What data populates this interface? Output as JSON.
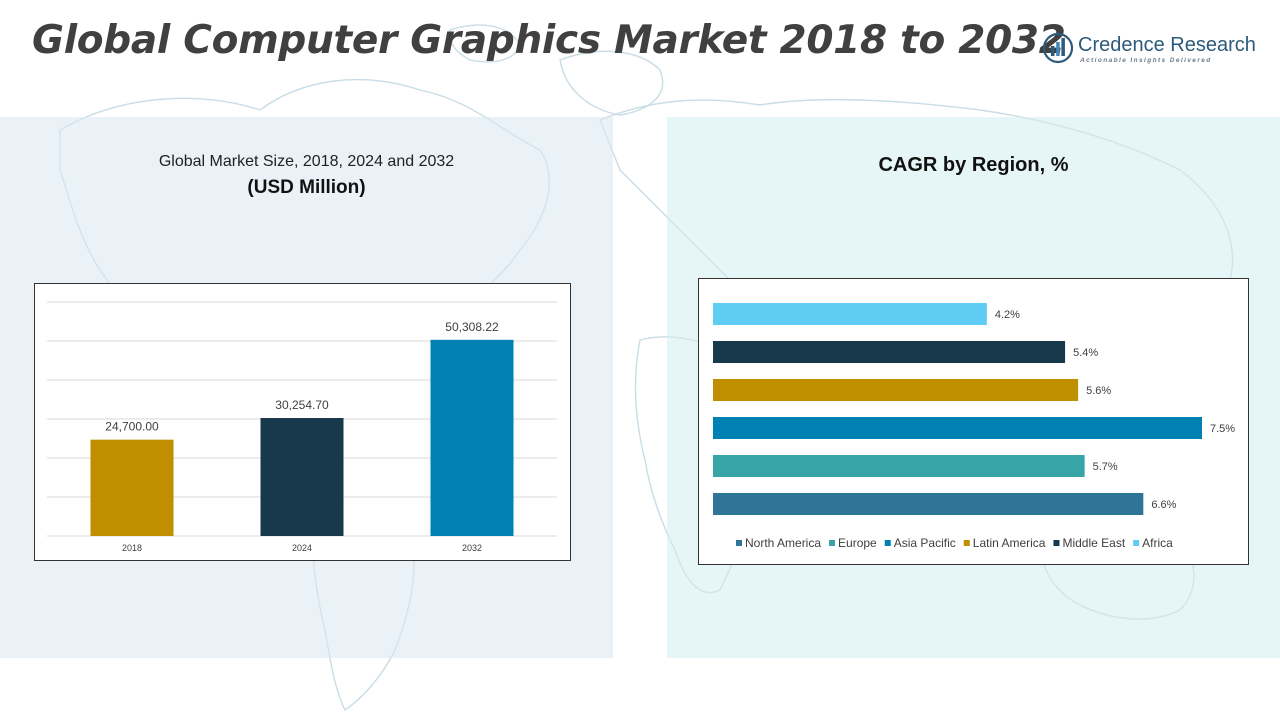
{
  "header": {
    "title": "Global Computer Graphics Market 2018 to 2032"
  },
  "logo": {
    "icon": "credence-logo-icon",
    "name": "Credence Research",
    "tagline": "Actionable Insights Delivered"
  },
  "left_panel": {
    "subtitle_line1": "Global Market Size, 2018, 2024 and 2032",
    "subtitle_line2": "(USD Million)"
  },
  "right_panel": {
    "subtitle": "CAGR by Region, %"
  },
  "colors": {
    "gold": "#BF8F00",
    "navy": "#17394B",
    "blue": "#0081B4",
    "teal": "#37A5A8",
    "steel": "#2F7597",
    "sky": "#5ECCF3"
  },
  "chart_data": [
    {
      "type": "bar",
      "categories": [
        "2018",
        "2024",
        "2032"
      ],
      "values": [
        24700.0,
        30254.7,
        50308.22
      ],
      "value_labels": [
        "24,700.00",
        "30,254.70",
        "50,308.22"
      ],
      "colors": [
        "#BF8F00",
        "#17394B",
        "#0081B4"
      ],
      "ylim": [
        0,
        60000
      ],
      "grid": true
    },
    {
      "type": "bar",
      "orientation": "horizontal",
      "categories": [
        "North America",
        "Europe",
        "Asia Pacific",
        "Latin America",
        "Middle East",
        "Africa"
      ],
      "values": [
        6.6,
        5.7,
        7.5,
        5.6,
        5.4,
        4.2
      ],
      "value_labels": [
        "6.6%",
        "5.7%",
        "7.5%",
        "5.6%",
        "5.4%",
        "4.2%"
      ],
      "colors": [
        "#2F7597",
        "#37A5A8",
        "#0081B4",
        "#BF8F00",
        "#17394B",
        "#5ECCF3"
      ],
      "xlim": [
        0,
        7.5
      ],
      "legend": "bottom",
      "grid": false
    }
  ]
}
